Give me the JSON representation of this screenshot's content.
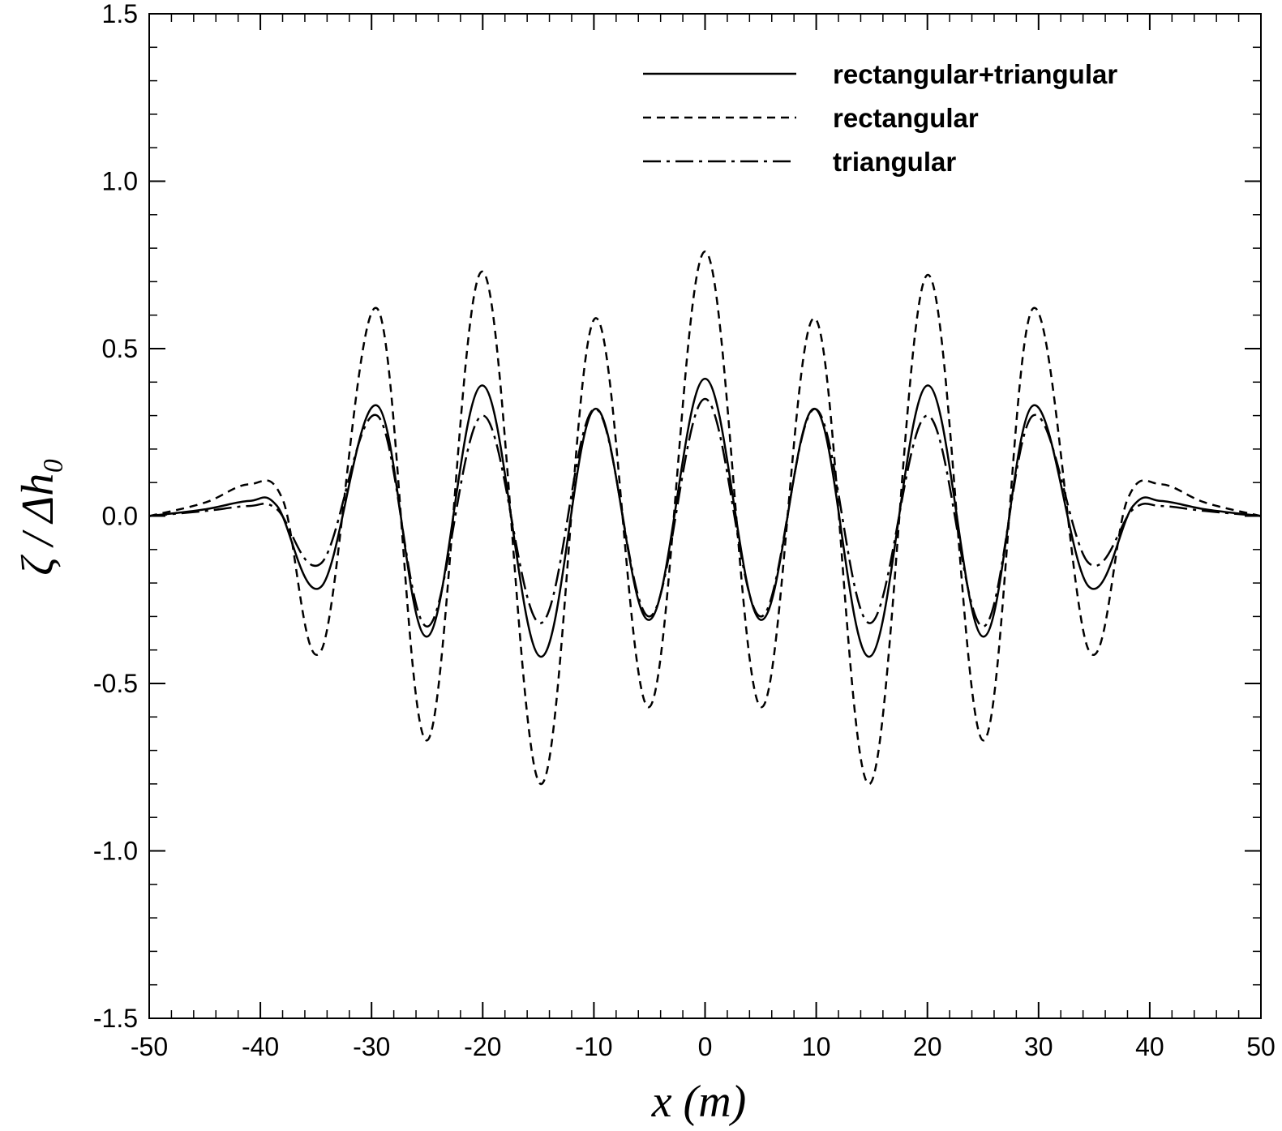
{
  "chart_data": {
    "type": "line",
    "title": "",
    "xlabel": "x (m)",
    "ylabel": "ζ / Δh₀",
    "xlim": [
      -50,
      50
    ],
    "ylim": [
      -1.5,
      1.5
    ],
    "grid": false,
    "legend_position": "top-right",
    "x_ticks": [
      "-50",
      "-40",
      "-30",
      "-20",
      "-10",
      "0",
      "10",
      "20",
      "30",
      "40",
      "50"
    ],
    "y_ticks": [
      "-1.5",
      "-1.0",
      "-0.5",
      "0.0",
      "0.5",
      "1.0",
      "1.5"
    ],
    "series": [
      {
        "name": "rectangular+triangular",
        "style": "solid",
        "x": [
          -50,
          -45,
          -41,
          -38.5,
          -34.5,
          -29.5,
          -25,
          -20,
          -14.8,
          -9.9,
          -5,
          0,
          5,
          9.9,
          14.8,
          20,
          25,
          29.5,
          34.5,
          38.5,
          41,
          45,
          50
        ],
        "y": [
          0.0,
          0.02,
          0.045,
          0.03,
          -0.21,
          0.33,
          -0.36,
          0.39,
          -0.42,
          0.32,
          -0.31,
          0.41,
          -0.31,
          0.32,
          -0.42,
          0.39,
          -0.36,
          0.33,
          -0.21,
          0.03,
          0.045,
          0.02,
          0.0
        ]
      },
      {
        "name": "rectangular",
        "style": "dashed",
        "x": [
          -50,
          -45,
          -41,
          -38,
          -34.5,
          -29.5,
          -25,
          -20,
          -14.8,
          -9.9,
          -5,
          0,
          5,
          9.9,
          14.8,
          20,
          25,
          29.5,
          34.5,
          38,
          41,
          45,
          50
        ],
        "y": [
          0.0,
          0.04,
          0.095,
          0.05,
          -0.4,
          0.62,
          -0.67,
          0.73,
          -0.8,
          0.59,
          -0.57,
          0.79,
          -0.57,
          0.59,
          -0.8,
          0.72,
          -0.67,
          0.62,
          -0.4,
          0.05,
          0.095,
          0.04,
          0.0
        ]
      },
      {
        "name": "triangular",
        "style": "dash-dot",
        "x": [
          -50,
          -45,
          -41,
          -38.5,
          -34.5,
          -29.5,
          -25,
          -20,
          -14.8,
          -9.9,
          -5,
          0,
          5,
          9.9,
          14.8,
          20,
          25,
          29.5,
          34.5,
          38.5,
          41,
          45,
          50
        ],
        "y": [
          0.0,
          0.015,
          0.03,
          0.02,
          -0.14,
          0.3,
          -0.33,
          0.3,
          -0.32,
          0.32,
          -0.3,
          0.35,
          -0.3,
          0.32,
          -0.32,
          0.3,
          -0.33,
          0.3,
          -0.14,
          0.02,
          0.03,
          0.015,
          0.0
        ]
      }
    ]
  }
}
